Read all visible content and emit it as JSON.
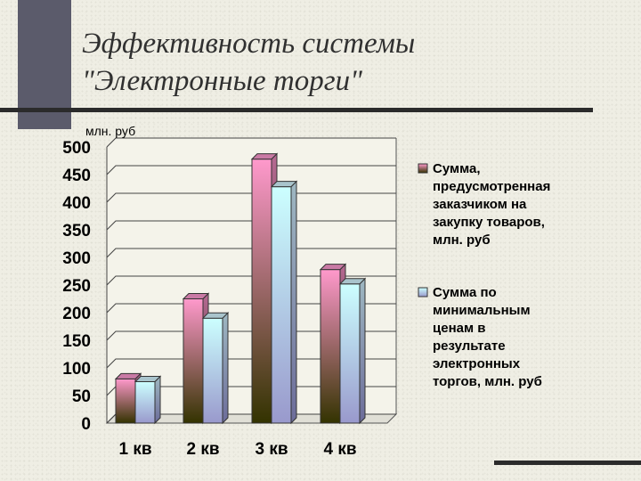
{
  "slide": {
    "title_lines": [
      "Эффективность системы",
      "\"Электронные торги\""
    ]
  },
  "chart_data": {
    "type": "bar",
    "title": "",
    "ylabel": "млн. руб",
    "xlabel": "",
    "categories": [
      "1 кв",
      "2 кв",
      "3 кв",
      "4 кв"
    ],
    "series": [
      {
        "name": "Сумма, предусмотренная заказчиком на закупку товаров, млн. руб",
        "values": [
          80,
          225,
          478,
          278
        ],
        "color_top": "#ff99cc",
        "color_bottom": "#333300"
      },
      {
        "name": "Сумма по минимальным ценам в результате электронных торгов, млн. руб",
        "values": [
          75,
          190,
          428,
          252
        ],
        "color_top": "#ccffff",
        "color_bottom": "#9999cc"
      }
    ],
    "ylim": [
      0,
      500
    ],
    "yticks": [
      0,
      50,
      100,
      150,
      200,
      250,
      300,
      350,
      400,
      450,
      500
    ],
    "grid": true,
    "legend_position": "right",
    "legend_lines": [
      [
        "Сумма,",
        "предусмотренная",
        "заказчиком на",
        "закупку товаров,",
        "млн. руб"
      ],
      [
        "Сумма по",
        "минимальным",
        "ценам в",
        "результате",
        "электронных",
        "торгов, млн. руб"
      ]
    ]
  }
}
